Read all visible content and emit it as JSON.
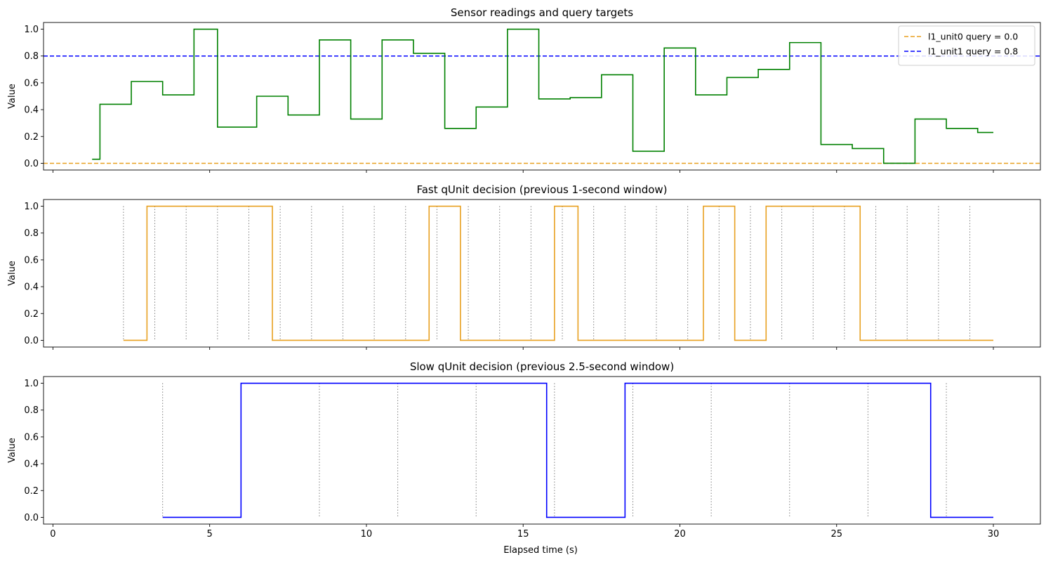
{
  "xlabel": "Elapsed time (s)",
  "chart_data": [
    {
      "type": "line",
      "step": "post",
      "title": "Sensor readings and query targets",
      "ylabel": "Value",
      "xlim": [
        -0.3,
        31.5
      ],
      "ylim": [
        -0.05,
        1.05
      ],
      "xticks": [
        0,
        5,
        10,
        15,
        20,
        25,
        30
      ],
      "xtick_labels_shown": false,
      "yticks": [
        0.0,
        0.2,
        0.4,
        0.6,
        0.8,
        1.0
      ],
      "ytick_labels": [
        "0.0",
        "0.2",
        "0.4",
        "0.6",
        "0.8",
        "1.0"
      ],
      "series": [
        {
          "color": "#008000",
          "x": [
            1.25,
            1.5,
            2.5,
            3.5,
            4.5,
            5.25,
            6.5,
            7.5,
            8.5,
            9.5,
            10.5,
            11.5,
            12.5,
            13.5,
            14.5,
            15.5,
            16.5,
            17.5,
            18.5,
            19.5,
            20.5,
            21.5,
            22.5,
            23.5,
            24.5,
            25.5,
            26.5,
            27.5,
            28.5,
            29.5,
            30.0
          ],
          "values": [
            0.03,
            0.44,
            0.61,
            0.51,
            1.0,
            0.27,
            0.5,
            0.36,
            0.92,
            0.33,
            0.92,
            0.82,
            0.26,
            0.42,
            1.0,
            0.48,
            0.49,
            0.66,
            0.09,
            0.86,
            0.51,
            0.64,
            0.7,
            0.9,
            0.14,
            0.11,
            0.0,
            0.33,
            0.26,
            0.23,
            0.23
          ]
        }
      ],
      "reference_lines": [
        {
          "name": "l1_unit0 query = 0.0",
          "y": 0.0,
          "color": "#e8a020",
          "style": "dashed"
        },
        {
          "name": "l1_unit1 query = 0.8",
          "y": 0.8,
          "color": "#0000ff",
          "style": "dashed"
        }
      ],
      "legend": "top-right"
    },
    {
      "type": "line",
      "step": "post",
      "title": "Fast qUnit decision (previous 1-second window)",
      "ylabel": "Value",
      "xlim": [
        -0.3,
        31.5
      ],
      "ylim": [
        -0.05,
        1.05
      ],
      "xticks": [
        0,
        5,
        10,
        15,
        20,
        25,
        30
      ],
      "xtick_labels_shown": false,
      "yticks": [
        0.0,
        0.2,
        0.4,
        0.6,
        0.8,
        1.0
      ],
      "ytick_labels": [
        "0.0",
        "0.2",
        "0.4",
        "0.6",
        "0.8",
        "1.0"
      ],
      "series": [
        {
          "color": "#e8a020",
          "x": [
            2.25,
            3.0,
            7.0,
            12.0,
            13.0,
            16.0,
            16.75,
            20.75,
            21.75,
            22.75,
            25.75,
            30.0
          ],
          "values": [
            0,
            1,
            0,
            1,
            0,
            1,
            0,
            1,
            0,
            1,
            0,
            0
          ]
        }
      ],
      "window_markers": [
        2.25,
        3.25,
        4.25,
        5.25,
        6.25,
        7.25,
        8.25,
        9.25,
        10.25,
        11.25,
        12.25,
        13.25,
        14.25,
        15.25,
        16.25,
        17.25,
        18.25,
        19.25,
        20.25,
        21.25,
        22.25,
        23.25,
        24.25,
        25.25,
        26.25,
        27.25,
        28.25,
        29.25
      ]
    },
    {
      "type": "line",
      "step": "post",
      "title": "Slow qUnit decision (previous 2.5-second window)",
      "ylabel": "Value",
      "xlim": [
        -0.3,
        31.5
      ],
      "ylim": [
        -0.05,
        1.05
      ],
      "xticks": [
        0,
        5,
        10,
        15,
        20,
        25,
        30
      ],
      "xtick_labels": [
        "0",
        "5",
        "10",
        "15",
        "20",
        "25",
        "30"
      ],
      "xtick_labels_shown": true,
      "yticks": [
        0.0,
        0.2,
        0.4,
        0.6,
        0.8,
        1.0
      ],
      "ytick_labels": [
        "0.0",
        "0.2",
        "0.4",
        "0.6",
        "0.8",
        "1.0"
      ],
      "series": [
        {
          "color": "#0000ff",
          "x": [
            3.5,
            6.0,
            15.75,
            18.25,
            28.0,
            30.0
          ],
          "values": [
            0,
            1,
            0,
            1,
            0,
            0
          ]
        }
      ],
      "window_markers": [
        3.5,
        6.0,
        8.5,
        11.0,
        13.5,
        16.0,
        18.5,
        21.0,
        23.5,
        26.0,
        28.5
      ]
    }
  ]
}
